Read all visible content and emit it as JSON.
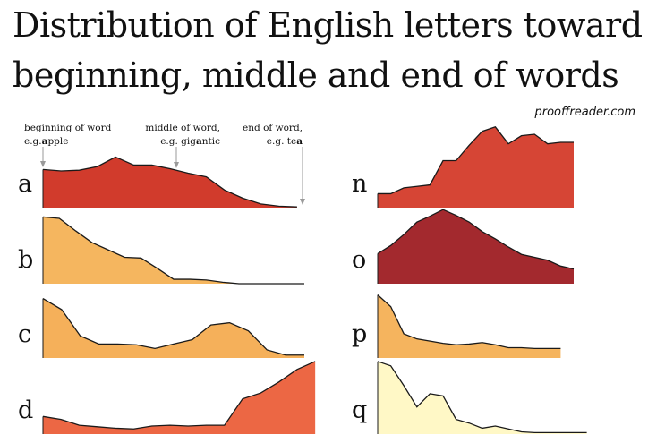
{
  "title_line1": "Distribution of English letters toward",
  "title_line2": "beginning, middle and end of words",
  "source": "prooffreader.com",
  "annotations": [
    {
      "line1": "beginning of word",
      "prefix": "e.g.",
      "bold": "a",
      "suffix": "pple"
    },
    {
      "line1": "middle of word,",
      "prefix": "e.g. gig",
      "bold": "a",
      "suffix": "ntic"
    },
    {
      "line1": "end of word,",
      "prefix": "e.g. te",
      "bold": "a",
      "suffix": ""
    }
  ],
  "chart_data": {
    "type": "area",
    "x_description": "relative position in word, beginning to end",
    "x": [
      0,
      5,
      10,
      15,
      20,
      25,
      30,
      35,
      40,
      45,
      50,
      55,
      60,
      65,
      70,
      75,
      80,
      85,
      90,
      95,
      100
    ],
    "panels": [
      {
        "letter": "a",
        "color": "#d13b2c",
        "values": [
          0.52,
          0.5,
          0.51,
          0.56,
          0.69,
          0.58,
          0.58,
          0.53,
          0.47,
          0.42,
          0.24,
          0.13,
          0.05,
          0.02,
          0.01,
          null,
          null,
          null,
          null,
          null,
          null
        ],
        "x_end": 72
      },
      {
        "letter": "b",
        "color": "#f5b65f",
        "values": [
          0.91,
          0.89,
          0.72,
          0.56,
          0.46,
          0.36,
          0.35,
          0.21,
          0.06,
          0.06,
          0.05,
          0.02,
          0.0,
          0.0,
          0.0,
          0.0,
          0.0,
          null,
          null,
          null,
          null
        ],
        "x_end": 80
      },
      {
        "letter": "c",
        "color": "#f5b05a",
        "values": [
          0.81,
          0.66,
          0.3,
          0.19,
          0.19,
          0.18,
          0.13,
          0.19,
          0.25,
          0.45,
          0.48,
          0.37,
          0.11,
          0.04,
          0.04,
          null,
          null,
          null,
          null,
          null,
          null
        ],
        "x_end": 70
      },
      {
        "letter": "d",
        "color": "#ec6744",
        "values": [
          0.24,
          0.2,
          0.12,
          0.1,
          0.08,
          0.07,
          0.11,
          0.12,
          0.11,
          0.12,
          0.12,
          0.48,
          0.56,
          0.71,
          0.88,
          0.99,
          null,
          null,
          null,
          null,
          null
        ],
        "x_end": 72
      },
      {
        "letter": "n",
        "color": "#d64535",
        "values": [
          0.19,
          0.19,
          0.27,
          0.29,
          0.31,
          0.64,
          0.64,
          0.85,
          1.04,
          1.1,
          0.87,
          0.98,
          1.0,
          0.87,
          0.89,
          0.89,
          null,
          null,
          null,
          null,
          null
        ],
        "x_end": 100
      },
      {
        "letter": "o",
        "color": "#a3292e",
        "values": [
          0.41,
          0.52,
          0.67,
          0.84,
          0.92,
          1.01,
          0.93,
          0.84,
          0.71,
          0.61,
          0.5,
          0.4,
          0.36,
          0.32,
          0.24,
          0.2,
          null,
          null,
          null,
          null,
          null
        ],
        "x_end": 100
      },
      {
        "letter": "p",
        "color": "#f5b45e",
        "values": [
          0.86,
          0.7,
          0.33,
          0.26,
          0.23,
          0.2,
          0.18,
          0.19,
          0.21,
          0.18,
          0.14,
          0.14,
          0.13,
          0.13,
          0.13,
          null,
          null,
          null,
          null,
          null,
          null
        ],
        "x_end": 100
      },
      {
        "letter": "q",
        "color": "#fff8c6",
        "values": [
          0.99,
          0.93,
          0.66,
          0.37,
          0.55,
          0.52,
          0.2,
          0.15,
          0.08,
          0.11,
          0.07,
          0.03,
          0.02,
          0.02,
          0.02,
          0.02,
          0.02,
          null,
          null,
          null,
          null
        ],
        "x_end": 100
      }
    ]
  }
}
